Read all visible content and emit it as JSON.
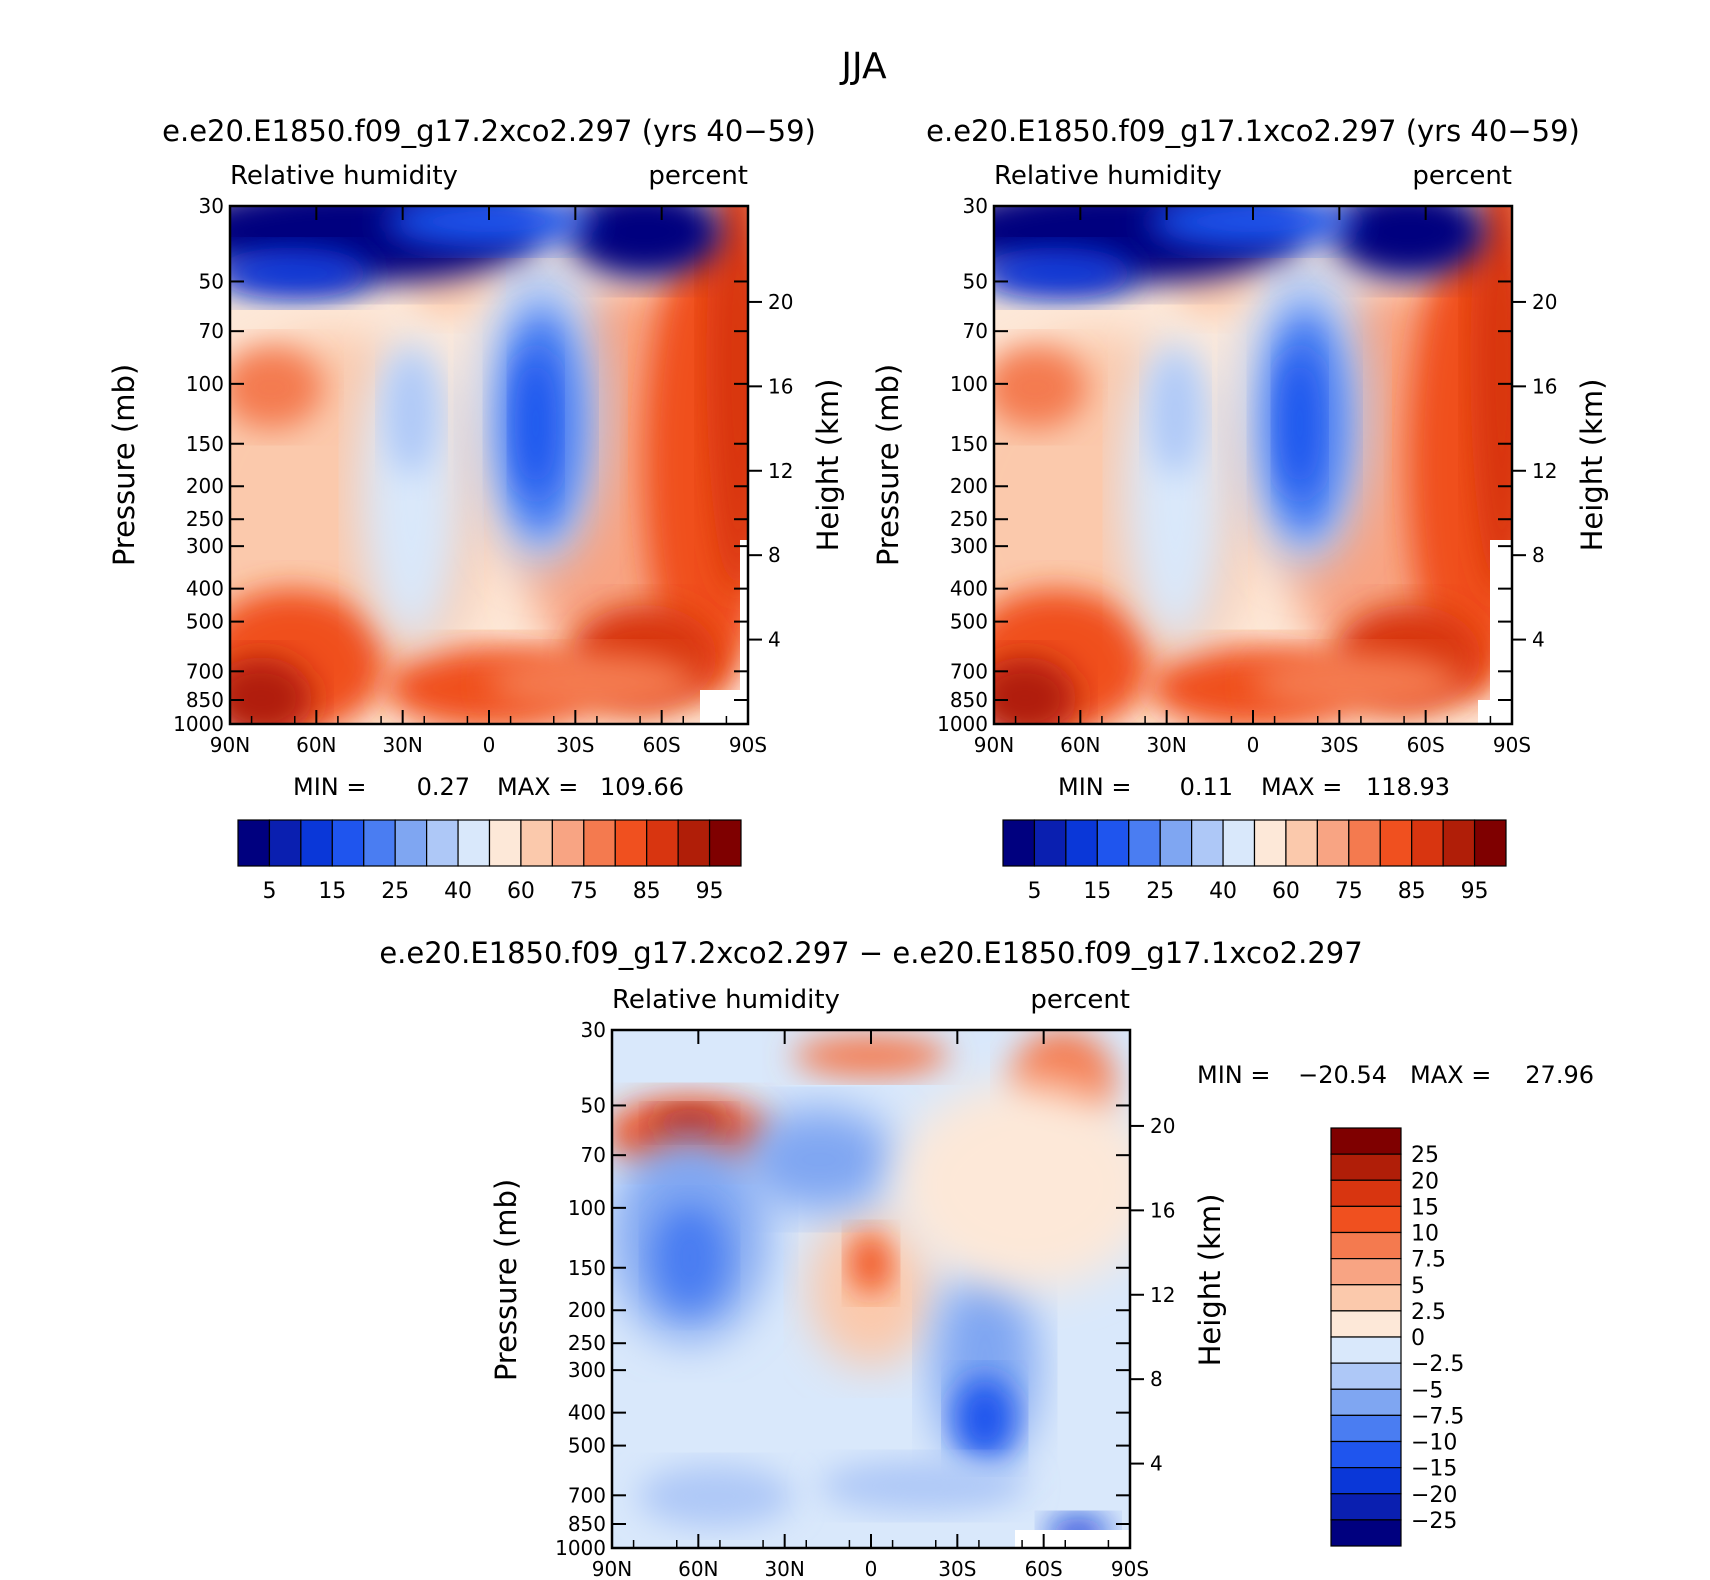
{
  "figure_title": "JJA",
  "colors": {
    "abs": [
      "#00007f",
      "#0a1fb0",
      "#0a37d8",
      "#1f55ee",
      "#4a7df2",
      "#7fa6f2",
      "#aec8f7",
      "#d9e8fb",
      "#fde8d8",
      "#fbc9ac",
      "#f8a483",
      "#f47a4f",
      "#f0501f",
      "#d83510",
      "#b01e08",
      "#7f0000"
    ],
    "diff": [
      "#00007f",
      "#0a1fb0",
      "#0a37d8",
      "#1f55ee",
      "#4a7df2",
      "#7fa6f2",
      "#aec8f7",
      "#d9e8fb",
      "#fde8d8",
      "#fbc9ac",
      "#f8a483",
      "#f47a4f",
      "#f0501f",
      "#d83510",
      "#b01e08",
      "#7f0000"
    ]
  },
  "chart_data": [
    {
      "type": "heatmap",
      "title": "e.e20.E1850.f09_g17.2xco2.297 (yrs 40−59)",
      "left_label": "Relative humidity",
      "right_label": "percent",
      "ylabel": "Pressure (mb)",
      "y2label": "Height (km)",
      "x_ticks": [
        "90N",
        "60N",
        "30N",
        "0",
        "30S",
        "60S",
        "90S"
      ],
      "y_ticks": [
        "30",
        "50",
        "70",
        "100",
        "150",
        "200",
        "250",
        "300",
        "400",
        "500",
        "700",
        "850",
        "1000"
      ],
      "y_tick_values": [
        30,
        50,
        70,
        100,
        150,
        200,
        250,
        300,
        400,
        500,
        700,
        850,
        1000
      ],
      "y2_ticks": [
        "20",
        "16",
        "12",
        "8",
        "4"
      ],
      "y2_tick_values": [
        20,
        16,
        12,
        8,
        4
      ],
      "ylim": [
        30,
        1000
      ],
      "min_label": "MIN =",
      "min_value": "0.27",
      "max_label": "MAX =",
      "max_value": "109.66",
      "colorbar_labels": [
        "5",
        "15",
        "25",
        "40",
        "60",
        "75",
        "85",
        "95"
      ],
      "variant": 0
    },
    {
      "type": "heatmap",
      "title": "e.e20.E1850.f09_g17.1xco2.297 (yrs 40−59)",
      "left_label": "Relative humidity",
      "right_label": "percent",
      "ylabel": "Pressure (mb)",
      "y2label": "Height (km)",
      "x_ticks": [
        "90N",
        "60N",
        "30N",
        "0",
        "30S",
        "60S",
        "90S"
      ],
      "y_ticks": [
        "30",
        "50",
        "70",
        "100",
        "150",
        "200",
        "250",
        "300",
        "400",
        "500",
        "700",
        "850",
        "1000"
      ],
      "y_tick_values": [
        30,
        50,
        70,
        100,
        150,
        200,
        250,
        300,
        400,
        500,
        700,
        850,
        1000
      ],
      "y2_ticks": [
        "20",
        "16",
        "12",
        "8",
        "4"
      ],
      "y2_tick_values": [
        20,
        16,
        12,
        8,
        4
      ],
      "ylim": [
        30,
        1000
      ],
      "min_label": "MIN =",
      "min_value": "0.11",
      "max_label": "MAX =",
      "max_value": "118.93",
      "colorbar_labels": [
        "5",
        "15",
        "25",
        "40",
        "60",
        "75",
        "85",
        "95"
      ],
      "variant": 1
    },
    {
      "type": "heatmap",
      "title": "e.e20.E1850.f09_g17.2xco2.297 − e.e20.E1850.f09_g17.1xco2.297",
      "left_label": "Relative humidity",
      "right_label": "percent",
      "ylabel": "Pressure (mb)",
      "y2label": "Height (km)",
      "x_ticks": [
        "90N",
        "60N",
        "30N",
        "0",
        "30S",
        "60S",
        "90S"
      ],
      "y_ticks": [
        "30",
        "50",
        "70",
        "100",
        "150",
        "200",
        "250",
        "300",
        "400",
        "500",
        "700",
        "850",
        "1000"
      ],
      "y_tick_values": [
        30,
        50,
        70,
        100,
        150,
        200,
        250,
        300,
        400,
        500,
        700,
        850,
        1000
      ],
      "y2_ticks": [
        "20",
        "16",
        "12",
        "8",
        "4"
      ],
      "y2_tick_values": [
        20,
        16,
        12,
        8,
        4
      ],
      "ylim": [
        30,
        1000
      ],
      "min_label": "MIN =",
      "min_value": "−20.54",
      "max_label": "MAX =",
      "max_value": "27.96",
      "colorbar_labels": [
        "25",
        "20",
        "15",
        "10",
        "7.5",
        "5",
        "2.5",
        "0",
        "−2.5",
        "−5",
        "−7.5",
        "−10",
        "−15",
        "−20",
        "−25"
      ]
    }
  ]
}
